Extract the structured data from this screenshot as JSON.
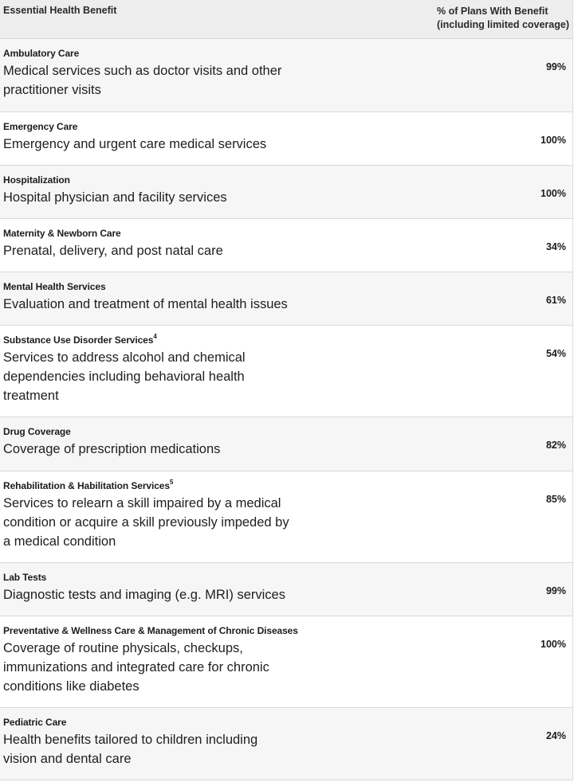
{
  "header": {
    "col1": "Essential Health Benefit",
    "col2_line1": "% of Plans With Benefit",
    "col2_line2": "(including limited coverage)"
  },
  "rows": [
    {
      "title": "Ambulatory Care",
      "sup": "",
      "desc_lines": [
        "Medical services such as doctor visits and other",
        "practitioner visits"
      ],
      "percent": "99%"
    },
    {
      "title": "Emergency Care",
      "sup": "",
      "desc_lines": [
        "Emergency and urgent care medical services"
      ],
      "percent": "100%"
    },
    {
      "title": "Hospitalization",
      "sup": "",
      "desc_lines": [
        "Hospital physician and facility services"
      ],
      "percent": "100%"
    },
    {
      "title": "Maternity & Newborn Care",
      "sup": "",
      "desc_lines": [
        "Prenatal, delivery, and post natal care"
      ],
      "percent": "34%"
    },
    {
      "title": "Mental Health Services",
      "sup": "",
      "desc_lines": [
        "Evaluation and treatment of mental health issues"
      ],
      "percent": "61%"
    },
    {
      "title": "Substance Use Disorder Services",
      "sup": "4",
      "desc_lines": [
        "Services to address alcohol and chemical",
        "dependencies including behavioral health",
        "treatment"
      ],
      "percent": "54%"
    },
    {
      "title": "Drug Coverage",
      "sup": "",
      "desc_lines": [
        "Coverage of prescription medications"
      ],
      "percent": "82%"
    },
    {
      "title": "Rehabilitation & Habilitation Services",
      "sup": "5",
      "desc_lines": [
        "Services to relearn a skill impaired by a medical",
        "condition or acquire a skill previously impeded by",
        "a medical condition"
      ],
      "percent": "85%"
    },
    {
      "title": "Lab Tests",
      "sup": "",
      "desc_lines": [
        "Diagnostic tests and imaging (e.g. MRI) services"
      ],
      "percent": "99%"
    },
    {
      "title": "Preventative & Wellness Care & Management of Chronic Diseases",
      "sup": "",
      "desc_lines": [
        "Coverage of routine physicals, checkups,",
        "immunizations and integrated care for chronic",
        "conditions like diabetes"
      ],
      "percent": "100%"
    },
    {
      "title": "Pediatric Care",
      "sup": "",
      "desc_lines": [
        "Health benefits tailored to children including",
        "vision and dental care"
      ],
      "percent": "24%"
    }
  ]
}
